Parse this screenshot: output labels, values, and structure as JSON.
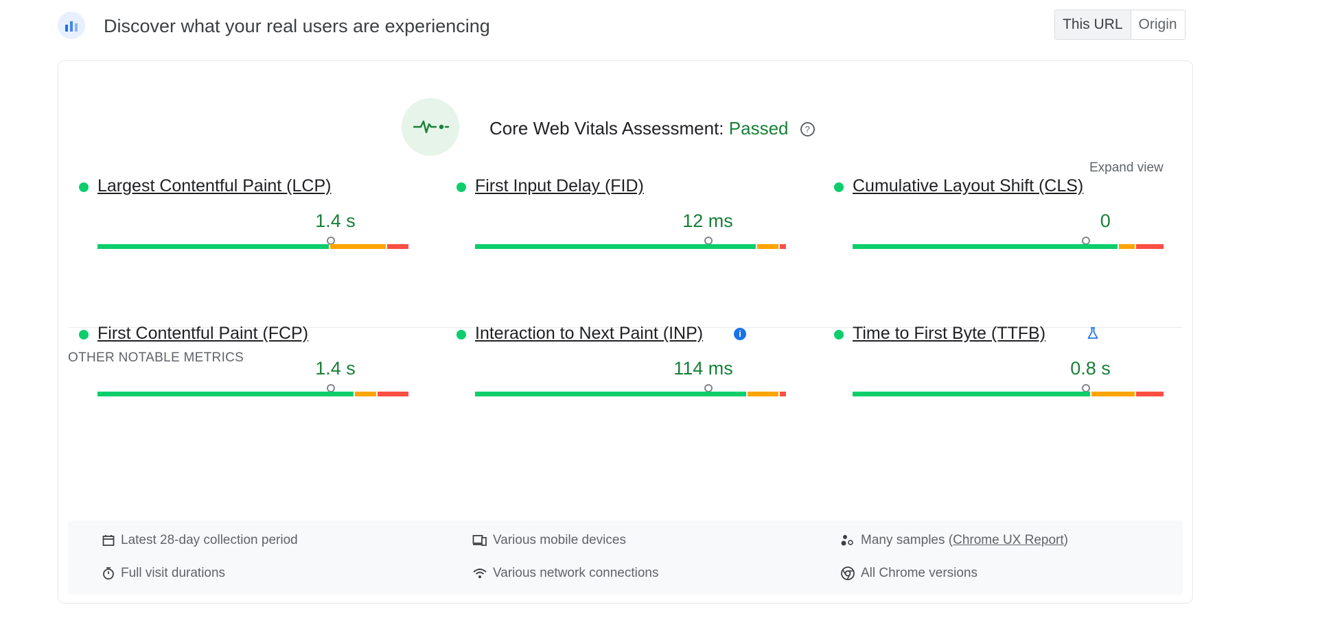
{
  "header": {
    "title": "Discover what your real users are experiencing",
    "icon": "crux-dashboard-icon"
  },
  "toggle": {
    "this_url": "This URL",
    "origin": "Origin",
    "selected": "This URL"
  },
  "assessment": {
    "prefix": "Core Web Vitals Assessment:",
    "status": "Passed",
    "status_color": "#188038"
  },
  "expand_label": "Expand view",
  "other_label": "OTHER NOTABLE METRICS",
  "colors": {
    "good": "#0cce6b",
    "needs_improvement": "#ffa400",
    "poor": "#ff4e42"
  },
  "core_metrics": [
    {
      "name": "Largest Contentful Paint (LCP)",
      "value": "1.4 s",
      "distribution": {
        "good": 0.75,
        "needs_improvement": 0.18,
        "poor": 0.07
      },
      "marker": 0.75
    },
    {
      "name": "First Input Delay (FID)",
      "value": "12 ms",
      "distribution": {
        "good": 0.91,
        "needs_improvement": 0.07,
        "poor": 0.02
      },
      "marker": 0.75
    },
    {
      "name": "Cumulative Layout Shift (CLS)",
      "value": "0",
      "distribution": {
        "good": 0.86,
        "needs_improvement": 0.05,
        "poor": 0.09
      },
      "marker": 0.75
    }
  ],
  "other_metrics": [
    {
      "name": "First Contentful Paint (FCP)",
      "value": "1.4 s",
      "distribution": {
        "good": 0.83,
        "needs_improvement": 0.07,
        "poor": 0.1
      },
      "marker": 0.75
    },
    {
      "name": "Interaction to Next Paint (INP)",
      "value": "114 ms",
      "distribution": {
        "good": 0.88,
        "needs_improvement": 0.1,
        "poor": 0.02
      },
      "marker": 0.75,
      "badge": "info-icon"
    },
    {
      "name": "Time to First Byte (TTFB)",
      "value": "0.8 s",
      "distribution": {
        "good": 0.77,
        "needs_improvement": 0.14,
        "poor": 0.09
      },
      "marker": 0.75,
      "badge": "lab-flask-icon"
    }
  ],
  "footer": {
    "collection_period": "Latest 28-day collection period",
    "devices": "Various mobile devices",
    "samples_prefix": "Many samples (",
    "samples_link": "Chrome UX Report",
    "samples_suffix": ")",
    "durations": "Full visit durations",
    "network": "Various network connections",
    "chrome": "All Chrome versions"
  }
}
